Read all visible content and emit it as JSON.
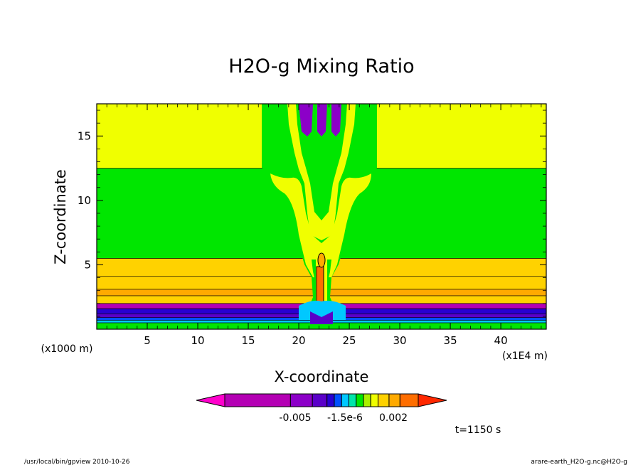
{
  "chart_data": {
    "type": "contour",
    "title": "H2O-g Mixing Ratio",
    "xlabel": "X-coordinate",
    "ylabel": "Z-coordinate",
    "x_unit_label": "(x1E4 m)",
    "y_unit_label": "(x1000 m)",
    "xlim": [
      0,
      44.5
    ],
    "ylim": [
      0,
      17.5
    ],
    "x_ticks": [
      5,
      10,
      15,
      20,
      25,
      30,
      35,
      40
    ],
    "y_ticks": [
      5,
      10,
      15
    ],
    "colorbar": {
      "tick_labels": [
        "-0.005",
        "-1.5e-6",
        "0.002"
      ],
      "colors": [
        "#ff00cc",
        "#b400b4",
        "#8c00c8",
        "#5a00c8",
        "#2800d2",
        "#0050ff",
        "#00c8ff",
        "#00e6aa",
        "#00e600",
        "#aaf000",
        "#f0ff00",
        "#ffd200",
        "#ffaa00",
        "#ff6e00",
        "#ff2800"
      ]
    },
    "bands": [
      {
        "z_from": 0,
        "z_to": 0.5,
        "color": "#00e600"
      },
      {
        "z_from": 0.5,
        "z_to": 0.7,
        "color": "#00c8ff"
      },
      {
        "z_from": 0.7,
        "z_to": 0.9,
        "color": "#0050ff"
      },
      {
        "z_from": 0.9,
        "z_to": 1.2,
        "color": "#5a00c8"
      },
      {
        "z_from": 1.2,
        "z_to": 1.6,
        "color": "#2800d2"
      },
      {
        "z_from": 1.6,
        "z_to": 2.0,
        "color": "#b400b4"
      },
      {
        "z_from": 2.0,
        "z_to": 2.6,
        "color": "#ffd200"
      },
      {
        "z_from": 2.6,
        "z_to": 3.1,
        "color": "#ffaa00"
      },
      {
        "z_from": 3.1,
        "z_to": 4.1,
        "color": "#ffd200"
      },
      {
        "z_from": 4.1,
        "z_to": 5.5,
        "color": "#ffd200"
      },
      {
        "z_from": 5.5,
        "z_to": 12.5,
        "color": "#00e600"
      },
      {
        "z_from": 12.5,
        "z_to": 17.5,
        "color": "#f0ff00"
      }
    ],
    "time_label": "t=1150 s"
  },
  "footer": {
    "left": "/usr/local/bin/gpview  2010-10-26",
    "right": "arare-earth_H2O-g.nc@H2O-g"
  }
}
